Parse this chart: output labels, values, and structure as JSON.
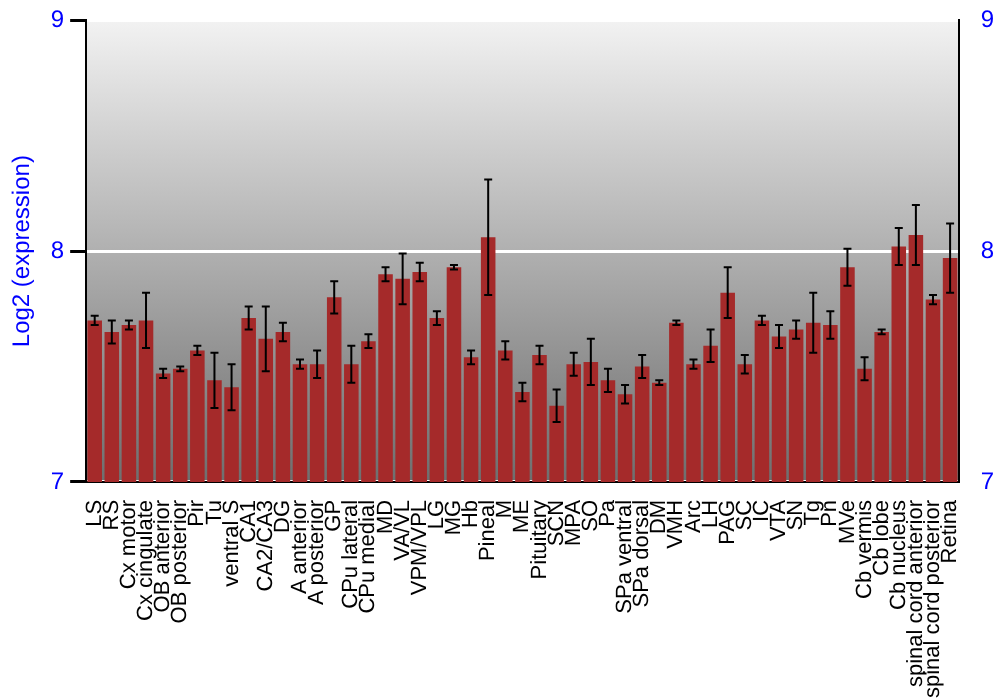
{
  "chart_data": {
    "type": "bar",
    "ylabel": "Log2 (expression)",
    "categories": [
      "LS",
      "RS",
      "Cx motor",
      "Cx cingulate",
      "OB anterior",
      "OB posterior",
      "Pir",
      "Tu",
      "ventral S",
      "CA1",
      "CA2/CA3",
      "DG",
      "A anterior",
      "A posterior",
      "GP",
      "CPu lateral",
      "CPu medial",
      "MD",
      "VA/VL",
      "VPM/VPL",
      "LG",
      "MG",
      "Hb",
      "Pineal",
      "M",
      "ME",
      "Pituitary",
      "SCN",
      "MPA",
      "SO",
      "Pa",
      "SPa ventral",
      "SPa dorsal",
      "DM",
      "VMH",
      "Arc",
      "LH",
      "PAG",
      "SC",
      "IC",
      "VTA",
      "SN",
      "Tg",
      "Pn",
      "MVe",
      "Cb vermis",
      "Cb lobe",
      "Cb nucleus",
      "spinal cord anterior",
      "spinal cord posterior",
      "Retina"
    ],
    "values": [
      7.7,
      7.65,
      7.68,
      7.7,
      7.47,
      7.49,
      7.57,
      7.44,
      7.41,
      7.71,
      7.62,
      7.65,
      7.51,
      7.51,
      7.8,
      7.51,
      7.61,
      7.9,
      7.88,
      7.91,
      7.71,
      7.93,
      7.54,
      8.06,
      7.57,
      7.39,
      7.55,
      7.33,
      7.51,
      7.52,
      7.44,
      7.38,
      7.5,
      7.43,
      7.69,
      7.51,
      7.59,
      7.82,
      7.51,
      7.7,
      7.63,
      7.66,
      7.69,
      7.68,
      7.93,
      7.49,
      7.65,
      8.02,
      8.07,
      7.79,
      7.97
    ],
    "errors": [
      0.02,
      0.05,
      0.02,
      0.12,
      0.02,
      0.01,
      0.02,
      0.12,
      0.1,
      0.05,
      0.14,
      0.04,
      0.02,
      0.06,
      0.07,
      0.08,
      0.03,
      0.03,
      0.11,
      0.04,
      0.03,
      0.01,
      0.03,
      0.25,
      0.04,
      0.04,
      0.04,
      0.07,
      0.05,
      0.1,
      0.05,
      0.04,
      0.05,
      0.01,
      0.01,
      0.02,
      0.07,
      0.11,
      0.04,
      0.02,
      0.05,
      0.04,
      0.13,
      0.06,
      0.08,
      0.05,
      0.01,
      0.08,
      0.13,
      0.02,
      0.15
    ],
    "color": "#a52a2a",
    "ylim": [
      7,
      9
    ],
    "yticks": [
      7,
      8,
      9
    ],
    "y2lim": [
      7,
      9
    ],
    "y2ticks": [
      7,
      8,
      9
    ],
    "grid": "y",
    "legend": false
  }
}
